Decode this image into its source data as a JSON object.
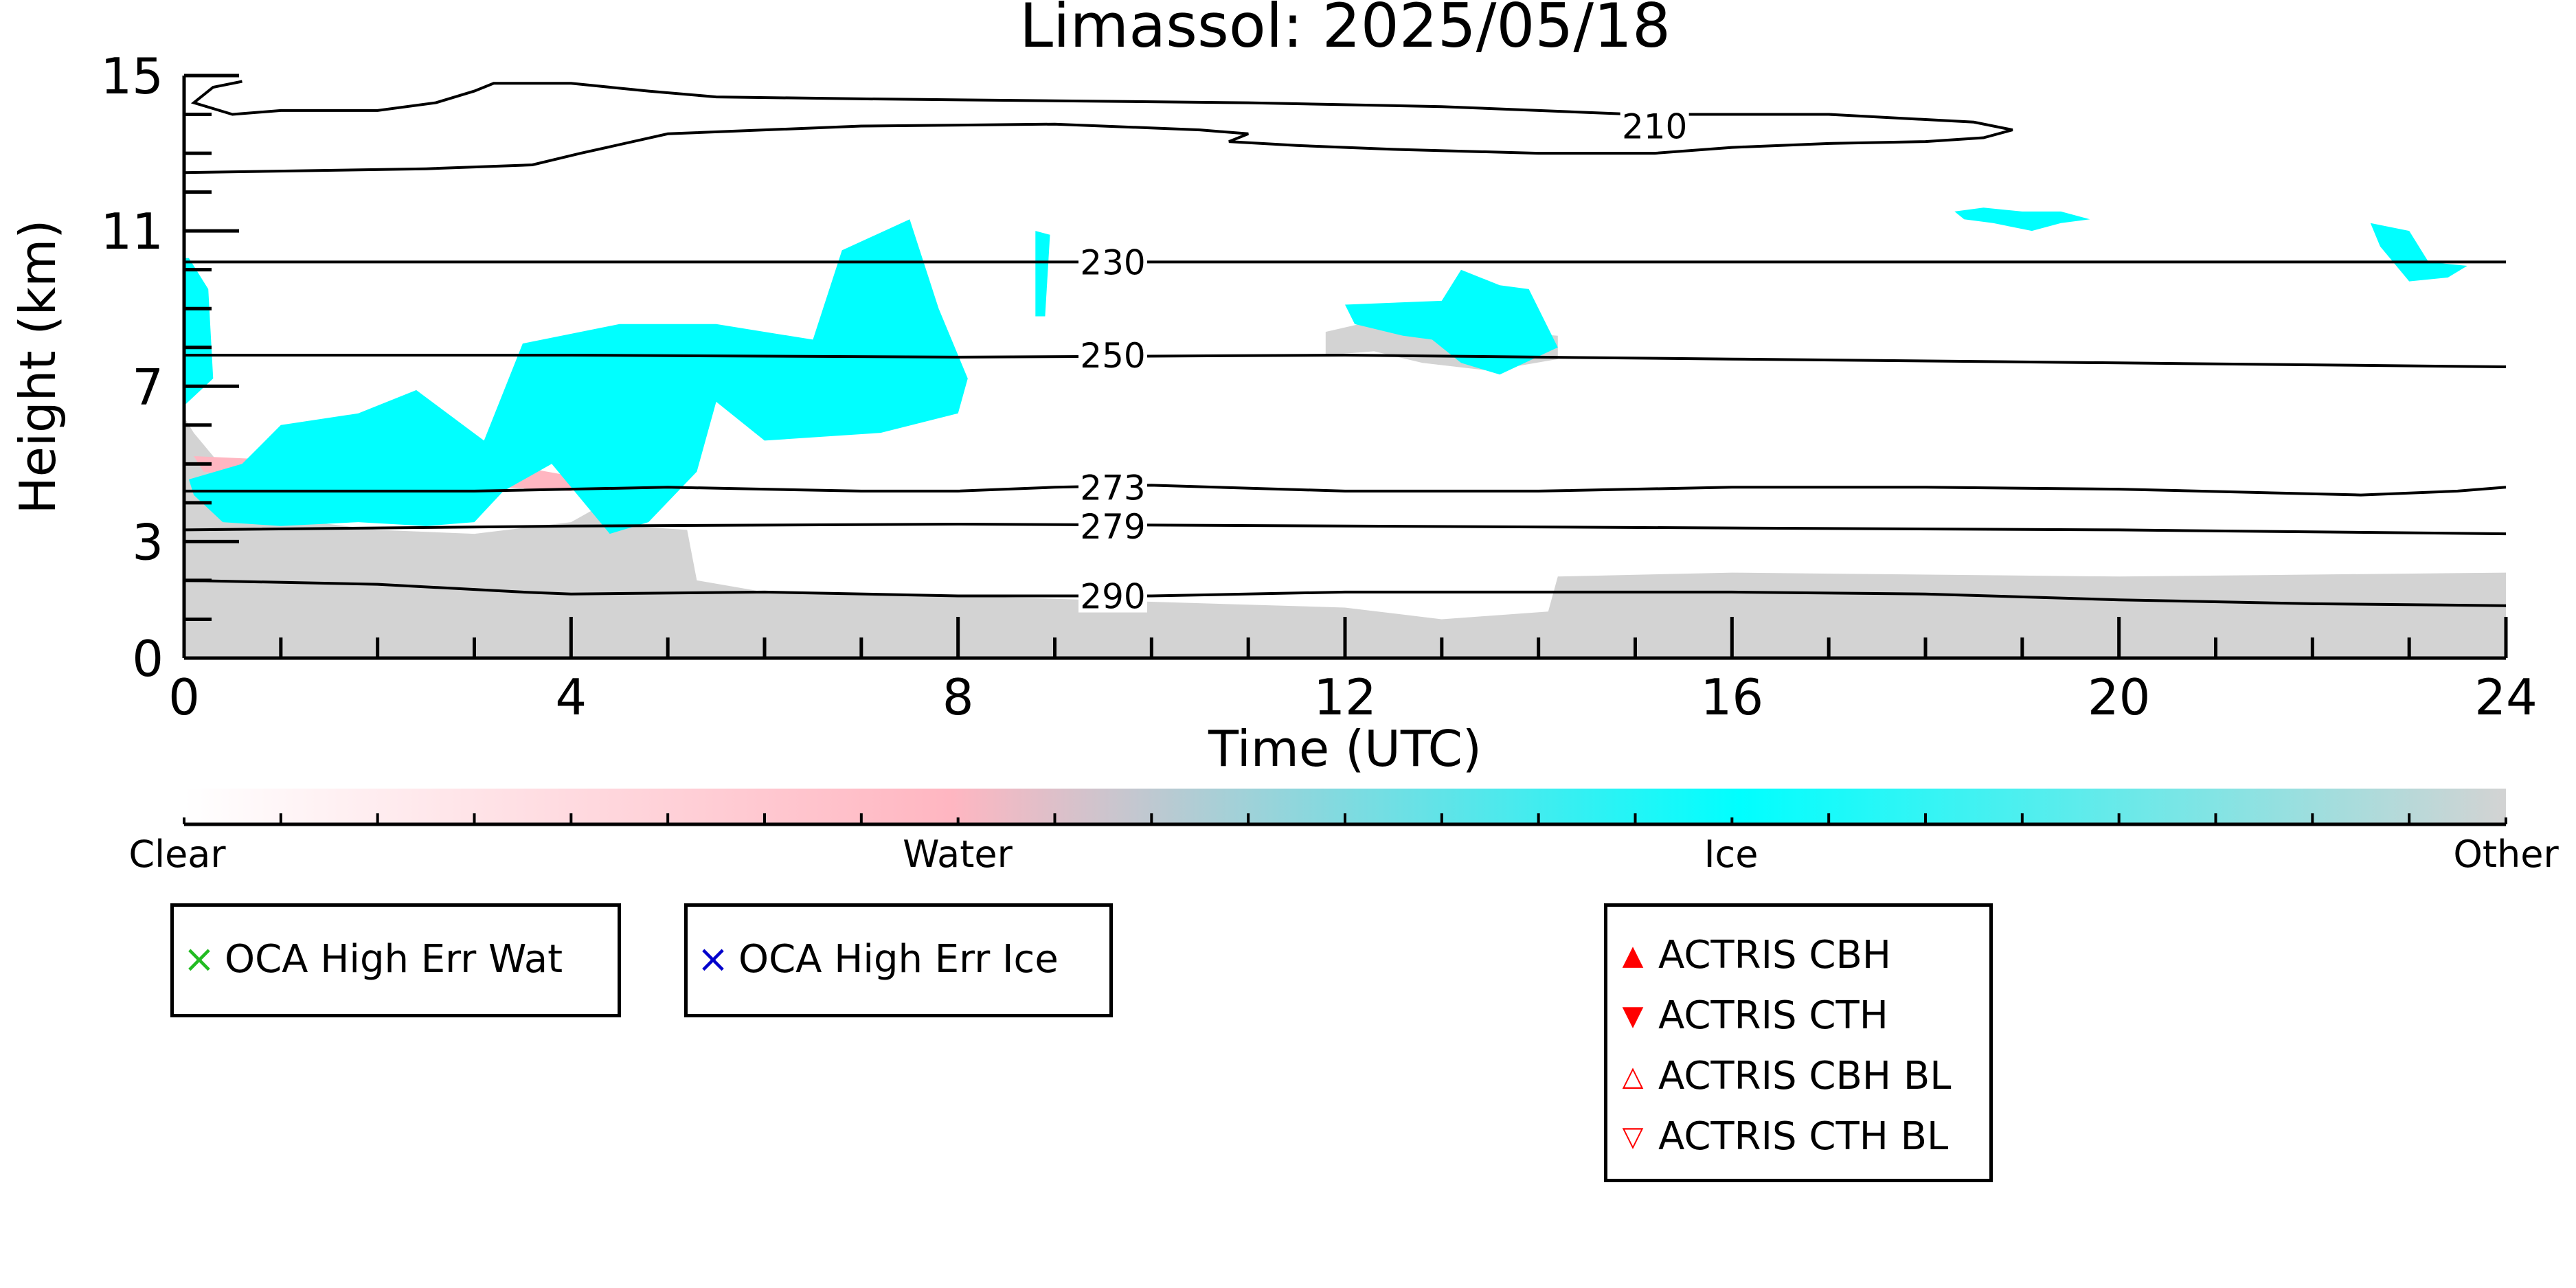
{
  "chart_data": {
    "type": "heatmap",
    "title": "Limassol: 2025/05/18",
    "xlabel": "Time (UTC)",
    "ylabel": "Height (km)",
    "xlim": [
      0,
      24
    ],
    "ylim": [
      0,
      15
    ],
    "x_ticks": [
      "0",
      "4",
      "8",
      "12",
      "16",
      "20",
      "24"
    ],
    "y_ticks": [
      "0",
      "3",
      "7",
      "11",
      "15"
    ],
    "colors": {
      "clear": "#ffffff",
      "water": "#ffb6c1",
      "ice": "#00ffff",
      "other": "#d3d3d3"
    },
    "colorbar": {
      "labels": [
        "Clear",
        "Water",
        "Ice",
        "Other"
      ]
    },
    "temperature_contours": [
      {
        "label": "210",
        "label_x": 15.2,
        "label_y": 13.7,
        "points": [
          [
            0,
            12.5
          ],
          [
            2.5,
            12.6
          ],
          [
            3.6,
            12.7
          ],
          [
            4.1,
            13.0
          ],
          [
            5,
            13.5
          ],
          [
            7,
            13.7
          ],
          [
            9,
            13.75
          ],
          [
            10.5,
            13.6
          ],
          [
            11,
            13.5
          ],
          [
            10.8,
            13.3
          ],
          [
            11.5,
            13.2
          ],
          [
            12.5,
            13.1
          ],
          [
            14,
            13.0
          ],
          [
            15.2,
            13.0
          ],
          [
            16,
            13.15
          ],
          [
            17,
            13.25
          ],
          [
            18,
            13.3
          ],
          [
            18.6,
            13.4
          ],
          [
            18.9,
            13.6
          ],
          [
            18.5,
            13.8
          ],
          [
            17,
            14.0
          ],
          [
            15,
            14.0
          ],
          [
            13,
            14.2
          ],
          [
            11,
            14.3
          ],
          [
            9,
            14.35
          ],
          [
            7,
            14.4
          ],
          [
            5.5,
            14.45
          ],
          [
            4.8,
            14.6
          ],
          [
            4,
            14.8
          ],
          [
            3.2,
            14.8
          ],
          [
            3,
            14.6
          ],
          [
            2.6,
            14.3
          ],
          [
            2,
            14.1
          ],
          [
            1,
            14.1
          ],
          [
            0.5,
            14.0
          ],
          [
            0.1,
            14.3
          ],
          [
            0.3,
            14.7
          ],
          [
            0.6,
            14.85
          ]
        ]
      },
      {
        "label": "230",
        "label_x": 9.6,
        "label_y": 10.2,
        "points": [
          [
            0,
            10.2
          ],
          [
            4,
            10.2
          ],
          [
            8,
            10.2
          ],
          [
            12,
            10.2
          ],
          [
            16,
            10.2
          ],
          [
            20,
            10.2
          ],
          [
            24,
            10.2
          ]
        ]
      },
      {
        "label": "250",
        "label_x": 9.6,
        "label_y": 7.8,
        "points": [
          [
            0,
            7.8
          ],
          [
            4,
            7.8
          ],
          [
            8,
            7.75
          ],
          [
            12,
            7.8
          ],
          [
            16,
            7.7
          ],
          [
            20,
            7.6
          ],
          [
            24,
            7.5
          ]
        ]
      },
      {
        "label": "273",
        "label_x": 9.6,
        "label_y": 4.4,
        "points": [
          [
            0,
            4.3
          ],
          [
            3,
            4.3
          ],
          [
            5,
            4.4
          ],
          [
            7,
            4.3
          ],
          [
            8,
            4.3
          ],
          [
            9,
            4.4
          ],
          [
            10,
            4.45
          ],
          [
            12,
            4.3
          ],
          [
            14,
            4.3
          ],
          [
            16,
            4.4
          ],
          [
            18,
            4.4
          ],
          [
            20,
            4.35
          ],
          [
            22.5,
            4.2
          ],
          [
            23.5,
            4.3
          ],
          [
            24,
            4.4
          ]
        ]
      },
      {
        "label": "279",
        "label_x": 9.6,
        "label_y": 3.4,
        "points": [
          [
            0,
            3.3
          ],
          [
            4,
            3.4
          ],
          [
            8,
            3.45
          ],
          [
            12,
            3.4
          ],
          [
            16,
            3.35
          ],
          [
            20,
            3.3
          ],
          [
            24,
            3.2
          ]
        ]
      },
      {
        "label": "290",
        "label_x": 9.6,
        "label_y": 1.6,
        "points": [
          [
            0,
            2.0
          ],
          [
            2,
            1.9
          ],
          [
            3.5,
            1.7
          ],
          [
            4,
            1.65
          ],
          [
            6,
            1.7
          ],
          [
            8,
            1.6
          ],
          [
            10,
            1.6
          ],
          [
            12,
            1.7
          ],
          [
            14,
            1.7
          ],
          [
            16,
            1.7
          ],
          [
            18,
            1.65
          ],
          [
            20,
            1.5
          ],
          [
            22,
            1.4
          ],
          [
            24,
            1.35
          ]
        ]
      }
    ],
    "other_regions": [
      {
        "points": [
          [
            0,
            0
          ],
          [
            24,
            0
          ],
          [
            24,
            2.2
          ],
          [
            20,
            2.1
          ],
          [
            16,
            2.2
          ],
          [
            14.2,
            2.1
          ],
          [
            14.1,
            1.2
          ],
          [
            13,
            1.0
          ],
          [
            12,
            1.3
          ],
          [
            8,
            1.6
          ],
          [
            6,
            1.7
          ],
          [
            5.3,
            2.0
          ],
          [
            5.2,
            3.3
          ],
          [
            4.6,
            3.4
          ],
          [
            4.5,
            4.2
          ],
          [
            4,
            3.5
          ],
          [
            3,
            3.2
          ],
          [
            2,
            3.3
          ],
          [
            1,
            3.6
          ],
          [
            0.5,
            4.6
          ],
          [
            0.1,
            5.8
          ],
          [
            0,
            6.2
          ]
        ]
      },
      {
        "points": [
          [
            11.8,
            8.4
          ],
          [
            12.5,
            8.8
          ],
          [
            13.2,
            8.5
          ],
          [
            14.2,
            8.3
          ],
          [
            14.2,
            7.7
          ],
          [
            13.5,
            7.4
          ],
          [
            12.8,
            7.6
          ],
          [
            12.3,
            7.9
          ],
          [
            11.8,
            7.8
          ]
        ]
      }
    ],
    "water_regions": [
      {
        "points": [
          [
            0.1,
            5.2
          ],
          [
            1,
            5.1
          ],
          [
            2,
            5.3
          ],
          [
            3,
            5.0
          ],
          [
            3.5,
            4.6
          ],
          [
            3,
            4.4
          ],
          [
            2,
            4.5
          ],
          [
            1,
            4.6
          ],
          [
            0.2,
            4.8
          ]
        ]
      },
      {
        "points": [
          [
            3.3,
            5.0
          ],
          [
            4.2,
            4.6
          ],
          [
            4,
            4.3
          ],
          [
            3.3,
            4.4
          ]
        ]
      }
    ],
    "ice_regions": [
      {
        "points": [
          [
            0,
            6.5
          ],
          [
            0.3,
            7.2
          ],
          [
            0.25,
            9.5
          ],
          [
            0.05,
            10.3
          ],
          [
            0,
            10.3
          ]
        ]
      },
      {
        "points": [
          [
            0.05,
            4.6
          ],
          [
            0.6,
            5.0
          ],
          [
            1,
            6.0
          ],
          [
            1.8,
            6.3
          ],
          [
            2.4,
            6.9
          ],
          [
            3.1,
            5.6
          ],
          [
            3.5,
            8.1
          ],
          [
            4.5,
            8.6
          ],
          [
            5.5,
            8.6
          ],
          [
            6.5,
            8.2
          ],
          [
            6.8,
            10.5
          ],
          [
            7.5,
            11.3
          ],
          [
            7.8,
            9.0
          ],
          [
            8.1,
            7.2
          ],
          [
            8.0,
            6.3
          ],
          [
            7.2,
            5.8
          ],
          [
            6.0,
            5.6
          ],
          [
            5.5,
            6.6
          ],
          [
            5.3,
            4.8
          ],
          [
            4.8,
            3.5
          ],
          [
            4.4,
            3.2
          ],
          [
            3.8,
            5.0
          ],
          [
            3.3,
            4.3
          ],
          [
            3.0,
            3.5
          ],
          [
            2.5,
            3.4
          ],
          [
            1.8,
            3.5
          ],
          [
            1.0,
            3.4
          ],
          [
            0.4,
            3.5
          ],
          [
            0.1,
            4.2
          ]
        ]
      },
      {
        "points": [
          [
            8.8,
            11.0
          ],
          [
            8.95,
            10.9
          ],
          [
            8.9,
            8.8
          ],
          [
            8.8,
            8.8
          ]
        ]
      },
      {
        "points": [
          [
            12.0,
            9.1
          ],
          [
            13.0,
            9.2
          ],
          [
            13.2,
            10.0
          ],
          [
            13.6,
            9.6
          ],
          [
            13.9,
            9.5
          ],
          [
            14.2,
            8.0
          ],
          [
            13.6,
            7.3
          ],
          [
            13.2,
            7.6
          ],
          [
            12.9,
            8.2
          ],
          [
            12.6,
            8.3
          ],
          [
            12.1,
            8.6
          ]
        ]
      },
      {
        "points": [
          [
            18.3,
            11.5
          ],
          [
            18.6,
            11.6
          ],
          [
            19.0,
            11.5
          ],
          [
            19.4,
            11.5
          ],
          [
            19.7,
            11.3
          ],
          [
            19.4,
            11.2
          ],
          [
            19.1,
            11.0
          ],
          [
            18.7,
            11.2
          ],
          [
            18.4,
            11.3
          ]
        ]
      },
      {
        "points": [
          [
            22.6,
            11.2
          ],
          [
            23.0,
            11.0
          ],
          [
            23.2,
            10.2
          ],
          [
            23.6,
            10.1
          ],
          [
            23.4,
            9.8
          ],
          [
            23.0,
            9.7
          ],
          [
            22.7,
            10.6
          ]
        ]
      }
    ],
    "legend_left": {
      "entries": [
        {
          "label": "OCA High Err Wat",
          "color": "#22bb22",
          "marker": "×"
        }
      ]
    },
    "legend_mid": {
      "entries": [
        {
          "label": "OCA High Err Ice",
          "color": "#0000cc",
          "marker": "×"
        }
      ]
    },
    "legend_right": {
      "entries": [
        {
          "label": "ACTRIS CBH",
          "color": "#ff0000",
          "marker": "▲"
        },
        {
          "label": "ACTRIS CTH",
          "color": "#ff0000",
          "marker": "▼"
        },
        {
          "label": "ACTRIS CBH BL",
          "color": "#ff0000",
          "marker": "△"
        },
        {
          "label": "ACTRIS CTH BL",
          "color": "#ff0000",
          "marker": "▽"
        }
      ]
    }
  }
}
